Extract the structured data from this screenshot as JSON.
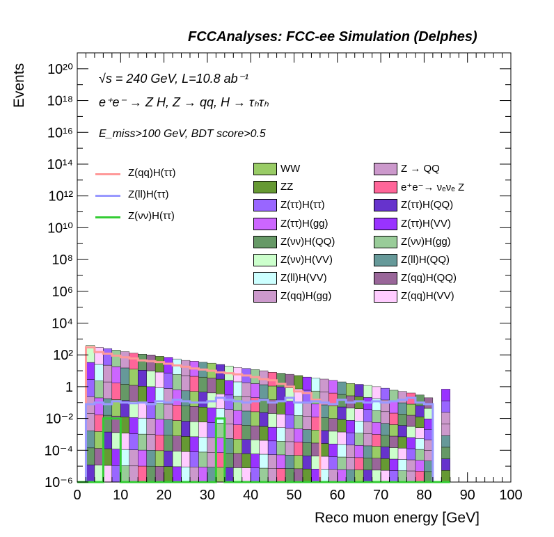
{
  "header": {
    "title": "FCCAnalyses: FCC-ee Simulation (Delphes)",
    "annotation_energy": "√s = 240 GeV, L=10.8 ab⁻¹",
    "annotation_process": "e⁺e⁻ → Z H, Z → qq, H → τₕτₕ",
    "annotation_cuts": "E_miss>100 GeV, BDT score>0.5"
  },
  "chart_data": {
    "type": "bar",
    "style": "stacked histogram with overlaid signal line histograms",
    "xlabel": "Reco muon energy [GeV]",
    "ylabel": "Events",
    "xlim": [
      0,
      100
    ],
    "ylim": [
      1e-06,
      1e+21
    ],
    "yscale": "log",
    "xticks": [
      0,
      10,
      20,
      30,
      40,
      50,
      60,
      70,
      80,
      90,
      100
    ],
    "yticks": [
      {
        "value": 1e-06,
        "label": "10⁻⁶"
      },
      {
        "value": 0.0001,
        "label": "10⁻⁴"
      },
      {
        "value": 0.01,
        "label": "10⁻²"
      },
      {
        "value": 1,
        "label": "1"
      },
      {
        "value": 100.0,
        "label": "10²"
      },
      {
        "value": 10000.0,
        "label": "10⁴"
      },
      {
        "value": 1000000.0,
        "label": "10⁶"
      },
      {
        "value": 100000000.0,
        "label": "10⁸"
      },
      {
        "value": 10000000000.0,
        "label": "10¹⁰"
      },
      {
        "value": 1000000000000.0,
        "label": "10¹²"
      },
      {
        "value": 100000000000000.0,
        "label": "10¹⁴"
      },
      {
        "value": 1e+16,
        "label": "10¹⁶"
      },
      {
        "value": 1e+18,
        "label": "10¹⁸"
      },
      {
        "value": 1e+20,
        "label": "10²⁰"
      }
    ],
    "bin_width": 2,
    "bin_low_edges": [
      0,
      2,
      4,
      6,
      8,
      10,
      12,
      14,
      16,
      18,
      20,
      22,
      24,
      26,
      28,
      30,
      32,
      34,
      36,
      38,
      40,
      42,
      44,
      46,
      48,
      50,
      52,
      54,
      56,
      58,
      60,
      62,
      64,
      66,
      68,
      70,
      72,
      74,
      76,
      78,
      80,
      82,
      84
    ],
    "stack_totals": [
      0,
      400,
      300,
      250,
      200,
      160,
      130,
      110,
      100,
      80,
      70,
      55,
      45,
      40,
      35,
      30,
      25,
      20,
      16,
      14,
      12,
      10,
      8,
      7,
      6,
      5,
      4,
      3.5,
      3,
      2.5,
      2,
      1.6,
      1.4,
      1.2,
      1,
      0.8,
      0.6,
      0.5,
      0.4,
      0.3,
      0.2,
      0,
      0.7
    ],
    "legend_stack": [
      {
        "name": "WW",
        "color": "#99cc66"
      },
      {
        "name": "Z → QQ",
        "color": "#cc99cc"
      },
      {
        "name": "ZZ",
        "color": "#669933"
      },
      {
        "name": "e⁺e⁻→ νₑνₑ Z",
        "color": "#ff6699"
      },
      {
        "name": "Z(ττ)H(ττ)",
        "color": "#9966ff"
      },
      {
        "name": "Z(ττ)H(QQ)",
        "color": "#6633cc"
      },
      {
        "name": "Z(ττ)H(gg)",
        "color": "#cc66ff"
      },
      {
        "name": "Z(ττ)H(VV)",
        "color": "#9933ff"
      },
      {
        "name": "Z(νν)H(QQ)",
        "color": "#669966"
      },
      {
        "name": "Z(νν)H(gg)",
        "color": "#99cc99"
      },
      {
        "name": "Z(νν)H(VV)",
        "color": "#ccffcc"
      },
      {
        "name": "Z(ll)H(QQ)",
        "color": "#669999"
      },
      {
        "name": "Z(ll)H(VV)",
        "color": "#ccffff"
      },
      {
        "name": "Z(qq)H(QQ)",
        "color": "#996699"
      },
      {
        "name": "Z(qq)H(gg)",
        "color": "#cc99cc"
      },
      {
        "name": "Z(qq)H(VV)",
        "color": "#ffccff"
      }
    ],
    "series": [
      {
        "name": "Z(qq)H(ττ)",
        "color": "#ff9999",
        "values": [
          0,
          300,
          150,
          120,
          90,
          70,
          60,
          45,
          40,
          35,
          28,
          22,
          18,
          14,
          12,
          10,
          8,
          7,
          6,
          5,
          4,
          3,
          2.5,
          1.5,
          1.0,
          0.5,
          0.4,
          0.15,
          0,
          0,
          0,
          0,
          0,
          0,
          0,
          0,
          0,
          0,
          0,
          0,
          0,
          0,
          0
        ]
      },
      {
        "name": "Z(ll)H(ττ)",
        "color": "#9999ff",
        "values": [
          0,
          0.08,
          0.1,
          0.08,
          0.12,
          0.1,
          0.09,
          0.1,
          0.08,
          0.12,
          0.1,
          0.15,
          0.12,
          0.1,
          0.1,
          0.12,
          0.2,
          0.15,
          0.12,
          0.1,
          0.12,
          0.15,
          0.1,
          0.12,
          0.2,
          0.1,
          0.1,
          0.12,
          0.1,
          0.08,
          0.15,
          0.1,
          0.12,
          0.1,
          0.12,
          0.1,
          0.12,
          0.15,
          0.2,
          0.1,
          0.08,
          0,
          0
        ]
      },
      {
        "name": "Z(νν)H(ττ)",
        "color": "#33cc33",
        "values": [
          0,
          0,
          0,
          0.01,
          0.01,
          0,
          0,
          0,
          0,
          0,
          0,
          0,
          0,
          0,
          0,
          0,
          0.01,
          0,
          0,
          0,
          0,
          0,
          0,
          0,
          0,
          0,
          0,
          0,
          0,
          0,
          0,
          0,
          0,
          0,
          0,
          0,
          0,
          0,
          0,
          0,
          0,
          0,
          0
        ]
      }
    ]
  }
}
